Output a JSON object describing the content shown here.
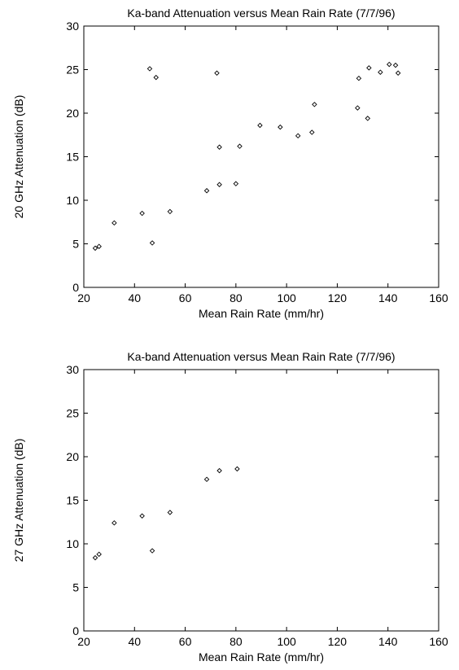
{
  "chart_data": [
    {
      "type": "scatter",
      "title": "Ka-band Attenuation versus Mean Rain Rate (7/7/96)",
      "xlabel": "Mean Rain Rate (mm/hr)",
      "ylabel": "20 GHz Attenuation (dB)",
      "xlim": [
        20,
        160
      ],
      "ylim": [
        0,
        30
      ],
      "xticks": [
        20,
        40,
        60,
        80,
        100,
        120,
        140,
        160
      ],
      "yticks": [
        0,
        5,
        10,
        15,
        20,
        25,
        30
      ],
      "grid": false,
      "marker": "diamond",
      "x": [
        24.5,
        26,
        32,
        43,
        46,
        47,
        48.5,
        54,
        68.5,
        72.5,
        73.5,
        73.5,
        80,
        81.5,
        89.5,
        97.5,
        104.5,
        110,
        111,
        128,
        128.5,
        132,
        132.5,
        137,
        140.5,
        143,
        144
      ],
      "y": [
        4.5,
        4.7,
        7.4,
        8.5,
        25.1,
        5.1,
        24.1,
        8.7,
        11.1,
        24.6,
        16.1,
        11.8,
        11.9,
        16.2,
        18.6,
        18.4,
        17.4,
        17.8,
        21.0,
        20.6,
        24.0,
        19.4,
        25.2,
        24.7,
        25.6,
        25.5,
        24.6
      ]
    },
    {
      "type": "scatter",
      "title": "Ka-band Attenuation versus Mean Rain Rate (7/7/96)",
      "xlabel": "Mean Rain Rate (mm/hr)",
      "ylabel": "27 GHz Attenuation (dB)",
      "xlim": [
        20,
        160
      ],
      "ylim": [
        0,
        30
      ],
      "xticks": [
        20,
        40,
        60,
        80,
        100,
        120,
        140,
        160
      ],
      "yticks": [
        0,
        5,
        10,
        15,
        20,
        25,
        30
      ],
      "grid": false,
      "marker": "diamond",
      "x": [
        24.5,
        26,
        32,
        43,
        47,
        54,
        68.5,
        73.5,
        80.5
      ],
      "y": [
        8.4,
        8.8,
        12.4,
        13.2,
        9.2,
        13.6,
        17.4,
        18.4,
        18.6
      ]
    }
  ]
}
